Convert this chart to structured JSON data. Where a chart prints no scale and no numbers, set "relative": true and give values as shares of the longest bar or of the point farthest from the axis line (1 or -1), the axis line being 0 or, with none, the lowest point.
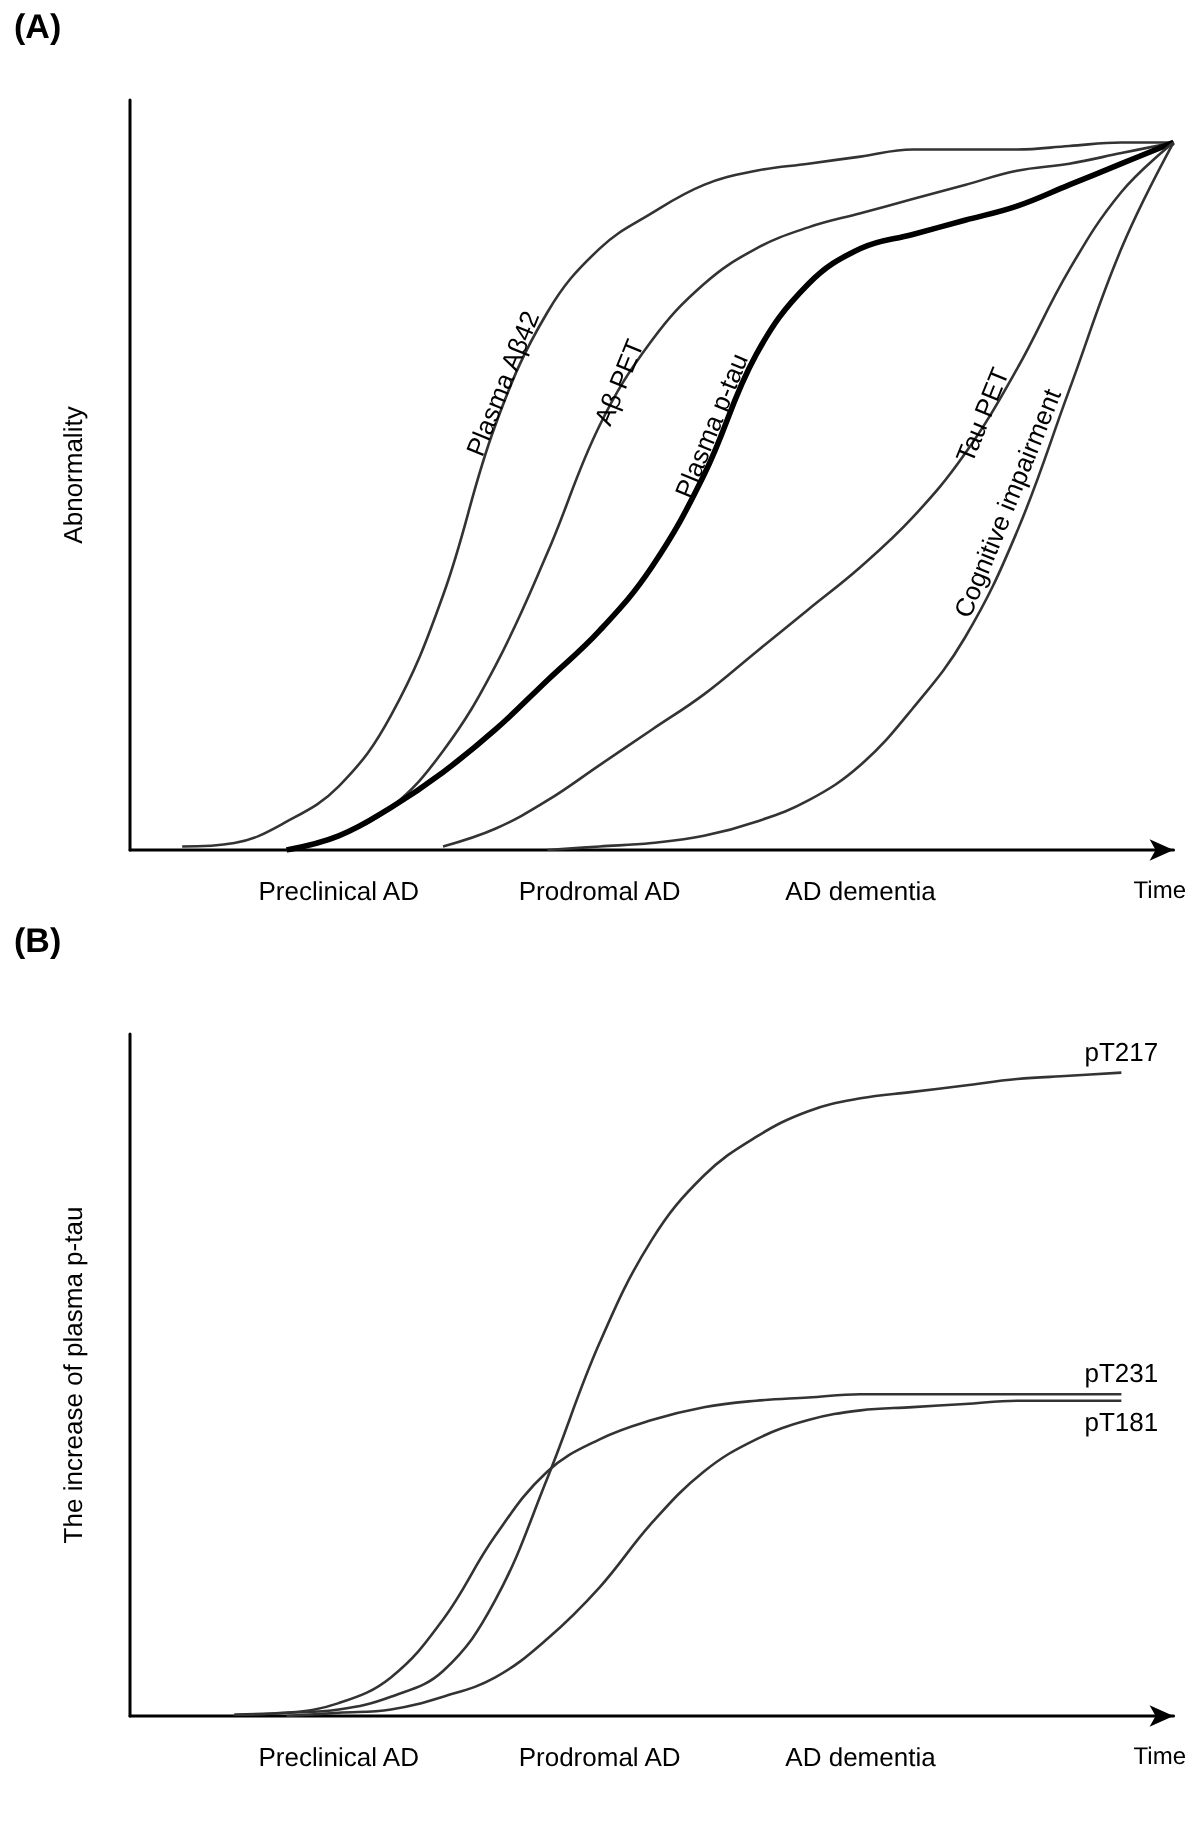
{
  "chart_data": [
    {
      "type": "line",
      "title": "(A)",
      "xlabel": "Time",
      "ylabel": "Abnormality",
      "relative": true,
      "marker": "none",
      "grid": false,
      "categories": [
        null,
        null,
        null,
        null,
        "Preclinical AD",
        null,
        null,
        null,
        null,
        "Prodromal AD",
        null,
        null,
        null,
        null,
        "AD dementia",
        null,
        null,
        null,
        null,
        null,
        null
      ],
      "series": [
        {
          "name": "Plasma Aβ42",
          "color": "#333333",
          "values": [
            null,
            0.005,
            0.01,
            0.04,
            0.09,
            0.19,
            0.36,
            0.6,
            0.76,
            0.85,
            0.9,
            0.94,
            0.96,
            0.97,
            0.98,
            0.99,
            0.99,
            0.99,
            0.995,
            1,
            1
          ]
        },
        {
          "name": "Aβ PET",
          "color": "#333333",
          "values": [
            null,
            null,
            null,
            0,
            0.02,
            0.06,
            0.14,
            0.26,
            0.42,
            0.6,
            0.72,
            0.8,
            0.85,
            0.88,
            0.9,
            0.92,
            0.94,
            0.96,
            0.97,
            0.985,
            1
          ]
        },
        {
          "name": "Plasma p-tau",
          "color": "#000000",
          "values": [
            null,
            null,
            null,
            0,
            0.02,
            0.06,
            0.11,
            0.17,
            0.24,
            0.31,
            0.4,
            0.53,
            0.7,
            0.8,
            0.85,
            0.87,
            0.89,
            0.91,
            0.94,
            0.97,
            1
          ]
        },
        {
          "name": "Tau PET",
          "color": "#333333",
          "values": [
            null,
            null,
            null,
            null,
            null,
            null,
            0.005,
            0.03,
            0.07,
            0.12,
            0.17,
            0.22,
            0.28,
            0.34,
            0.4,
            0.47,
            0.56,
            0.68,
            0.82,
            0.93,
            1
          ]
        },
        {
          "name": "Cognitive impairment",
          "color": "#333333",
          "values": [
            null,
            null,
            null,
            null,
            null,
            null,
            null,
            null,
            0,
            0.005,
            0.01,
            0.02,
            0.04,
            0.07,
            0.12,
            0.2,
            0.3,
            0.45,
            0.65,
            0.85,
            1
          ]
        }
      ]
    },
    {
      "type": "line",
      "title": "(B)",
      "xlabel": "Time",
      "ylabel": "The increase of plasma p-tau",
      "relative": true,
      "marker": "none",
      "grid": false,
      "categories": [
        null,
        null,
        null,
        null,
        "Preclinical AD",
        null,
        null,
        null,
        null,
        "Prodromal AD",
        null,
        null,
        null,
        null,
        "AD dementia",
        null,
        null,
        null,
        null,
        null,
        null
      ],
      "series": [
        {
          "name": "pT217",
          "color": "#333333",
          "values": [
            null,
            null,
            0.002,
            0.005,
            0.01,
            0.03,
            0.07,
            0.18,
            0.37,
            0.58,
            0.74,
            0.84,
            0.9,
            0.94,
            0.96,
            0.97,
            0.98,
            0.99,
            0.995,
            1,
            null
          ]
        },
        {
          "name": "pT231",
          "color": "#333333",
          "values": [
            null,
            null,
            0.002,
            0.005,
            0.02,
            0.06,
            0.15,
            0.28,
            0.38,
            0.43,
            0.46,
            0.48,
            0.49,
            0.495,
            0.5,
            0.5,
            0.5,
            0.5,
            0.5,
            0.5,
            null
          ]
        },
        {
          "name": "pT181",
          "color": "#333333",
          "values": [
            null,
            null,
            null,
            0,
            0.005,
            0.01,
            0.03,
            0.06,
            0.12,
            0.2,
            0.3,
            0.38,
            0.43,
            0.46,
            0.475,
            0.48,
            0.485,
            0.49,
            0.49,
            0.49,
            null
          ]
        }
      ]
    }
  ]
}
